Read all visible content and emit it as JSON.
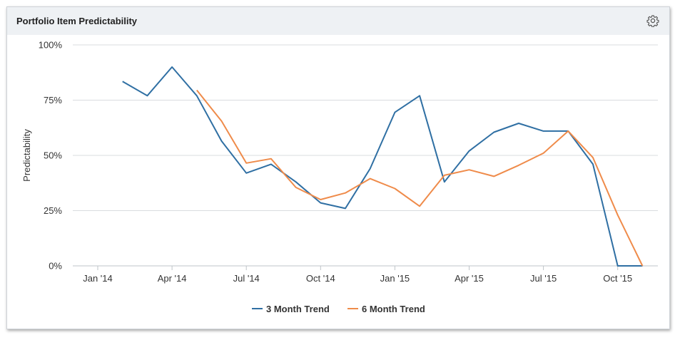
{
  "header": {
    "title": "Portfolio Item Predictability",
    "settings_icon": "gear-icon"
  },
  "chart_data": {
    "type": "line",
    "title": "",
    "xlabel": "",
    "ylabel": "Predictability",
    "ylim": [
      0,
      100
    ],
    "y_ticks": [
      "0%",
      "25%",
      "50%",
      "75%",
      "100%"
    ],
    "y_tick_values": [
      0,
      25,
      50,
      75,
      100
    ],
    "x_tick_labels": [
      "Jan '14",
      "Apr '14",
      "Jul '14",
      "Oct '14",
      "Jan '15",
      "Apr '15",
      "Jul '15",
      "Oct '15"
    ],
    "x_tick_indices": [
      0,
      3,
      6,
      9,
      12,
      15,
      18,
      21
    ],
    "x": [
      "2014-01",
      "2014-02",
      "2014-03",
      "2014-04",
      "2014-05",
      "2014-06",
      "2014-07",
      "2014-08",
      "2014-09",
      "2014-10",
      "2014-11",
      "2014-12",
      "2015-01",
      "2015-02",
      "2015-03",
      "2015-04",
      "2015-05",
      "2015-06",
      "2015-07",
      "2015-08",
      "2015-09",
      "2015-10",
      "2015-11"
    ],
    "grid": true,
    "legend_position": "bottom-center",
    "series": [
      {
        "name": "3 Month Trend",
        "color": "#2f6fa3",
        "values": [
          null,
          83.5,
          77,
          90,
          77,
          56.5,
          42,
          46,
          38,
          28.5,
          26,
          44,
          69.5,
          77,
          38,
          52,
          60.5,
          64.5,
          61,
          61,
          46,
          0,
          0
        ]
      },
      {
        "name": "6 Month Trend",
        "color": "#ef8b4a",
        "values": [
          null,
          null,
          null,
          null,
          79.5,
          65.5,
          46.5,
          48.5,
          35.5,
          30,
          33,
          39.5,
          35,
          27,
          41,
          43.5,
          40.5,
          45.5,
          51,
          61,
          49,
          23,
          0
        ]
      }
    ]
  }
}
